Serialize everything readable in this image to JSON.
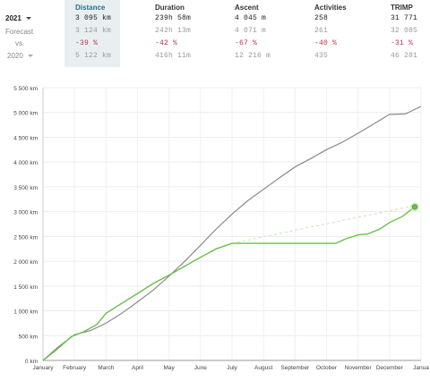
{
  "rows": {
    "current": {
      "label": "2021"
    },
    "forecast": {
      "label": "Forecast"
    },
    "vs": {
      "label": "vs."
    },
    "previous": {
      "label": "2020"
    }
  },
  "columns": [
    {
      "header": "Distance",
      "current": "3 095 km",
      "forecast": "3 124 km",
      "vs": "-39 %",
      "previous": "5 122 km"
    },
    {
      "header": "Duration",
      "current": "239h 58m",
      "forecast": "242h 13m",
      "vs": "-42 %",
      "previous": "416h 11m"
    },
    {
      "header": "Ascent",
      "current": "4 045 m",
      "forecast": "4 071 m",
      "vs": "-67 %",
      "previous": "12 216 m"
    },
    {
      "header": "Activities",
      "current": "258",
      "forecast": "261",
      "vs": "-40 %",
      "previous": "435"
    },
    {
      "header": "TRIMP",
      "current": "31 771",
      "forecast": "32 085",
      "vs": "-31 %",
      "previous": "46 281"
    }
  ],
  "colors": {
    "current": "#6abf4b",
    "previous": "#8a8a8a",
    "forecast": "#c8e3b8",
    "highlight": "#e9eff1",
    "vs": "#b2334d"
  },
  "chart_data": {
    "type": "line",
    "ylim": [
      0,
      5500
    ],
    "yticks": [
      "0 km",
      "500 km",
      "1 000 km",
      "1 500 km",
      "2 000 km",
      "2 500 km",
      "3 000 km",
      "3 500 km",
      "4 000 km",
      "4 500 km",
      "5 000 km",
      "5 500 km"
    ],
    "ytick_values": [
      0,
      500,
      1000,
      1500,
      2000,
      2500,
      3000,
      3500,
      4000,
      4500,
      5000,
      5500
    ],
    "xlabels": [
      "January",
      "February",
      "March",
      "April",
      "May",
      "June",
      "July",
      "August",
      "September",
      "October",
      "November",
      "December",
      "Janua"
    ],
    "xlim": [
      0,
      12
    ],
    "grid": true,
    "series": [
      {
        "key": "current",
        "points": [
          [
            0,
            0
          ],
          [
            0.4,
            200
          ],
          [
            0.9,
            480
          ],
          [
            1.3,
            580
          ],
          [
            1.7,
            720
          ],
          [
            2,
            950
          ],
          [
            2.5,
            1150
          ],
          [
            3,
            1350
          ],
          [
            3.5,
            1550
          ],
          [
            4,
            1720
          ],
          [
            4.5,
            1900
          ],
          [
            5,
            2080
          ],
          [
            5.5,
            2250
          ],
          [
            6,
            2360
          ],
          [
            7,
            2360
          ],
          [
            8,
            2360
          ],
          [
            9,
            2360
          ],
          [
            9.3,
            2360
          ],
          [
            9.6,
            2450
          ],
          [
            10,
            2530
          ],
          [
            10.3,
            2550
          ],
          [
            10.7,
            2650
          ],
          [
            11,
            2780
          ],
          [
            11.4,
            2900
          ],
          [
            11.8,
            3095
          ]
        ]
      },
      {
        "key": "previous",
        "points": [
          [
            0,
            0
          ],
          [
            0.5,
            280
          ],
          [
            1,
            520
          ],
          [
            1.5,
            600
          ],
          [
            2,
            750
          ],
          [
            2.5,
            950
          ],
          [
            3,
            1180
          ],
          [
            3.5,
            1420
          ],
          [
            4,
            1700
          ],
          [
            4.5,
            2000
          ],
          [
            5,
            2320
          ],
          [
            5.5,
            2650
          ],
          [
            6,
            2950
          ],
          [
            6.5,
            3220
          ],
          [
            7,
            3450
          ],
          [
            7.5,
            3680
          ],
          [
            8,
            3900
          ],
          [
            8.5,
            4070
          ],
          [
            9,
            4250
          ],
          [
            9.5,
            4400
          ],
          [
            10,
            4580
          ],
          [
            10.5,
            4770
          ],
          [
            11,
            4960
          ],
          [
            11.5,
            4970
          ],
          [
            12,
            5122
          ]
        ]
      },
      {
        "key": "forecast",
        "points": [
          [
            6,
            2360
          ],
          [
            11.8,
            3124
          ]
        ]
      }
    ],
    "endpoint": [
      11.8,
      3095
    ]
  }
}
